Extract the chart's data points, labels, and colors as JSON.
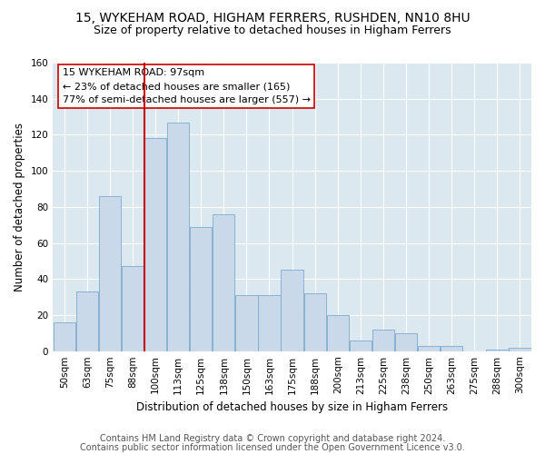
{
  "title_line1": "15, WYKEHAM ROAD, HIGHAM FERRERS, RUSHDEN, NN10 8HU",
  "title_line2": "Size of property relative to detached houses in Higham Ferrers",
  "xlabel": "Distribution of detached houses by size in Higham Ferrers",
  "ylabel": "Number of detached properties",
  "categories": [
    "50sqm",
    "63sqm",
    "75sqm",
    "88sqm",
    "100sqm",
    "113sqm",
    "125sqm",
    "138sqm",
    "150sqm",
    "163sqm",
    "175sqm",
    "188sqm",
    "200sqm",
    "213sqm",
    "225sqm",
    "238sqm",
    "250sqm",
    "263sqm",
    "275sqm",
    "288sqm",
    "300sqm"
  ],
  "values": [
    16,
    33,
    86,
    47,
    118,
    127,
    69,
    76,
    31,
    31,
    45,
    32,
    20,
    6,
    12,
    10,
    3,
    3,
    0,
    1,
    2
  ],
  "bar_color": "#c9d9ea",
  "bar_edge_color": "#7aabcf",
  "vline_color": "#cc0000",
  "vline_position": 3.5,
  "annotation_text": "15 WYKEHAM ROAD: 97sqm\n← 23% of detached houses are smaller (165)\n77% of semi-detached houses are larger (557) →",
  "annotation_box_color": "#ffffff",
  "annotation_box_edge": "#cc0000",
  "ylim": [
    0,
    160
  ],
  "yticks": [
    0,
    20,
    40,
    60,
    80,
    100,
    120,
    140,
    160
  ],
  "footer_line1": "Contains HM Land Registry data © Crown copyright and database right 2024.",
  "footer_line2": "Contains public sector information licensed under the Open Government Licence v3.0.",
  "fig_bg_color": "#ffffff",
  "plot_bg_color": "#dce8f0",
  "grid_color": "#ffffff",
  "title_fontsize": 10,
  "subtitle_fontsize": 9,
  "axis_label_fontsize": 8.5,
  "tick_fontsize": 7.5,
  "annotation_fontsize": 8,
  "footer_fontsize": 7
}
